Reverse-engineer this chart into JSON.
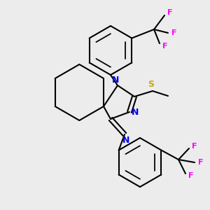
{
  "bg_color": "#ececec",
  "atom_colors": {
    "C": "#000000",
    "N": "#0000ee",
    "S": "#ccaa00",
    "F": "#ff00ff"
  },
  "bond_color": "#000000",
  "bond_width": 1.5
}
